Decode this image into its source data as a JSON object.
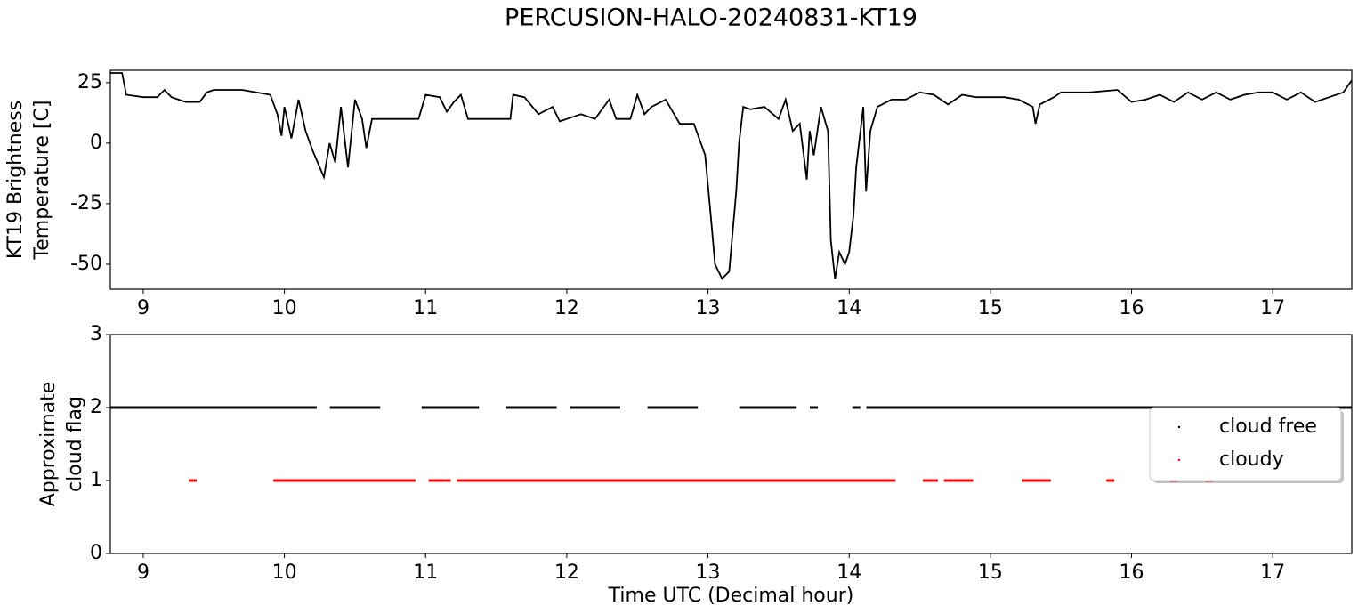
{
  "title": "PERCUSION-HALO-20240831-KT19",
  "chart_data": [
    {
      "type": "line",
      "y_label": [
        "KT19 Brightness",
        "Temperature [C]"
      ],
      "color": "#000000",
      "x": [
        8.77,
        8.85,
        8.88,
        9.0,
        9.1,
        9.15,
        9.2,
        9.3,
        9.4,
        9.45,
        9.5,
        9.7,
        9.9,
        9.95,
        9.98,
        10.0,
        10.05,
        10.1,
        10.15,
        10.2,
        10.25,
        10.28,
        10.32,
        10.36,
        10.4,
        10.45,
        10.5,
        10.55,
        10.58,
        10.62,
        10.7,
        10.8,
        10.95,
        11.0,
        11.1,
        11.15,
        11.2,
        11.25,
        11.3,
        11.5,
        11.6,
        11.62,
        11.7,
        11.8,
        11.9,
        11.95,
        12.0,
        12.1,
        12.2,
        12.3,
        12.35,
        12.45,
        12.5,
        12.55,
        12.6,
        12.7,
        12.8,
        12.9,
        12.95,
        12.98,
        13.02,
        13.05,
        13.1,
        13.15,
        13.17,
        13.2,
        13.22,
        13.25,
        13.3,
        13.4,
        13.5,
        13.55,
        13.6,
        13.65,
        13.7,
        13.72,
        13.75,
        13.8,
        13.85,
        13.87,
        13.9,
        13.93,
        13.97,
        14.0,
        14.03,
        14.05,
        14.1,
        14.12,
        14.15,
        14.2,
        14.3,
        14.4,
        14.5,
        14.6,
        14.7,
        14.8,
        14.9,
        15.0,
        15.1,
        15.2,
        15.3,
        15.32,
        15.35,
        15.45,
        15.5,
        15.7,
        15.9,
        16.0,
        16.1,
        16.2,
        16.3,
        16.4,
        16.5,
        16.6,
        16.7,
        16.8,
        16.9,
        17.0,
        17.1,
        17.2,
        17.3,
        17.4,
        17.5,
        17.56
      ],
      "values": [
        29,
        29,
        20,
        19,
        19,
        22,
        19,
        17,
        17,
        21,
        22,
        22,
        20,
        12,
        3,
        15,
        2,
        18,
        5,
        -3,
        -10,
        -14,
        0,
        -8,
        15,
        -10,
        18,
        10,
        -2,
        10,
        10,
        10,
        10,
        20,
        19,
        13,
        17,
        20,
        10,
        10,
        10,
        20,
        19,
        12,
        15,
        9,
        10,
        12,
        10,
        18,
        10,
        10,
        20,
        12,
        15,
        18,
        8,
        8,
        0,
        -5,
        -30,
        -50,
        -56,
        -53,
        -40,
        -20,
        0,
        15,
        14,
        15,
        10,
        18,
        5,
        8,
        -15,
        5,
        -5,
        15,
        5,
        -40,
        -56,
        -45,
        -50,
        -45,
        -30,
        -10,
        15,
        -20,
        5,
        15,
        18,
        18,
        21,
        20,
        16,
        20,
        19,
        19,
        19,
        18,
        15,
        8,
        16,
        19,
        21,
        21,
        22,
        17,
        18,
        20,
        17,
        21,
        18,
        21,
        18,
        20,
        21,
        21,
        18,
        21,
        17,
        19,
        21,
        26
      ],
      "xlim": [
        8.767,
        17.56
      ],
      "ylim": [
        -60.3,
        30.1
      ],
      "xticks": [
        9,
        10,
        11,
        12,
        13,
        14,
        15,
        16,
        17
      ],
      "yticks": [
        25,
        0,
        -25,
        -50
      ]
    },
    {
      "type": "scatter",
      "y_label": [
        "Approximate",
        "cloud flag"
      ],
      "x_label": "Time UTC (Decimal hour)",
      "legend": "right",
      "series": [
        {
          "name": "cloud free",
          "color": "#000000",
          "x": [
            8.77,
            8.8,
            8.85,
            8.9,
            8.95,
            9.0,
            9.05,
            9.1,
            9.15,
            9.2,
            9.25,
            9.3,
            9.35,
            9.4,
            9.45,
            9.5,
            9.55,
            9.6,
            9.65,
            9.7,
            9.75,
            9.8,
            9.85,
            9.9,
            9.95,
            10.0,
            10.05,
            10.1,
            10.15,
            10.2,
            10.35,
            10.4,
            10.45,
            10.5,
            10.55,
            10.6,
            10.65,
            11.0,
            11.05,
            11.1,
            11.15,
            11.2,
            11.25,
            11.3,
            11.35,
            11.6,
            11.65,
            11.7,
            11.75,
            11.8,
            11.85,
            11.9,
            12.05,
            12.1,
            12.15,
            12.2,
            12.25,
            12.3,
            12.35,
            12.6,
            12.65,
            12.7,
            12.75,
            12.8,
            12.85,
            12.9,
            13.25,
            13.3,
            13.35,
            13.4,
            13.45,
            13.5,
            13.55,
            13.6,
            13.75,
            14.05,
            14.15,
            14.2,
            14.25,
            14.3,
            14.35,
            14.4,
            14.45,
            14.5,
            14.55,
            14.6,
            14.65,
            14.7,
            14.75,
            14.8,
            14.85,
            14.9,
            14.95,
            15.0,
            15.05,
            15.1,
            15.15,
            15.2,
            15.25,
            15.3,
            15.35,
            15.4,
            15.45,
            15.5,
            15.55,
            15.6,
            15.65,
            15.7,
            15.75,
            15.8,
            15.85,
            15.9,
            15.95,
            16.0,
            16.05,
            16.1,
            16.15,
            16.2,
            16.25,
            16.3,
            16.35,
            16.4,
            16.45,
            16.5,
            16.55,
            16.6,
            16.65,
            16.7,
            16.75,
            16.8,
            16.85,
            16.9,
            16.95,
            17.0,
            17.05,
            17.1,
            17.15,
            17.2,
            17.25,
            17.3,
            17.35,
            17.4,
            17.45,
            17.5,
            17.55
          ],
          "values": [
            2,
            2,
            2,
            2,
            2,
            2,
            2,
            2,
            2,
            2,
            2,
            2,
            2,
            2,
            2,
            2,
            2,
            2,
            2,
            2,
            2,
            2,
            2,
            2,
            2,
            2,
            2,
            2,
            2,
            2,
            2,
            2,
            2,
            2,
            2,
            2,
            2,
            2,
            2,
            2,
            2,
            2,
            2,
            2,
            2,
            2,
            2,
            2,
            2,
            2,
            2,
            2,
            2,
            2,
            2,
            2,
            2,
            2,
            2,
            2,
            2,
            2,
            2,
            2,
            2,
            2,
            2,
            2,
            2,
            2,
            2,
            2,
            2,
            2,
            2,
            2,
            2,
            2,
            2,
            2,
            2,
            2,
            2,
            2,
            2,
            2,
            2,
            2,
            2,
            2,
            2,
            2,
            2,
            2,
            2,
            2,
            2,
            2,
            2,
            2,
            2,
            2,
            2,
            2,
            2,
            2,
            2,
            2,
            2,
            2,
            2,
            2,
            2,
            2,
            2,
            2,
            2,
            2,
            2,
            2,
            2,
            2,
            2,
            2,
            2,
            2,
            2,
            2,
            2,
            2,
            2,
            2,
            2,
            2,
            2,
            2,
            2,
            2,
            2,
            2,
            2,
            2,
            2,
            2,
            2
          ]
        },
        {
          "name": "cloudy",
          "color": "#ff0000",
          "x": [
            9.35,
            9.95,
            10.0,
            10.05,
            10.1,
            10.15,
            10.2,
            10.25,
            10.3,
            10.35,
            10.4,
            10.45,
            10.5,
            10.55,
            10.6,
            10.65,
            10.7,
            10.75,
            10.8,
            10.85,
            10.9,
            11.05,
            11.1,
            11.15,
            11.25,
            11.3,
            11.35,
            11.4,
            11.45,
            11.5,
            11.55,
            11.6,
            11.65,
            11.7,
            11.75,
            11.8,
            11.85,
            11.9,
            11.95,
            12.0,
            12.05,
            12.1,
            12.15,
            12.2,
            12.25,
            12.3,
            12.35,
            12.4,
            12.45,
            12.5,
            12.55,
            12.6,
            12.65,
            12.7,
            12.75,
            12.8,
            12.85,
            12.9,
            12.95,
            13.0,
            13.05,
            13.1,
            13.15,
            13.2,
            13.25,
            13.3,
            13.35,
            13.4,
            13.45,
            13.5,
            13.55,
            13.6,
            13.65,
            13.7,
            13.75,
            13.8,
            13.85,
            13.9,
            13.95,
            14.0,
            14.05,
            14.1,
            14.15,
            14.2,
            14.25,
            14.3,
            14.55,
            14.6,
            14.7,
            14.75,
            14.8,
            14.85,
            15.25,
            15.3,
            15.35,
            15.4,
            15.85,
            16.3,
            16.55
          ],
          "values": [
            1,
            1,
            1,
            1,
            1,
            1,
            1,
            1,
            1,
            1,
            1,
            1,
            1,
            1,
            1,
            1,
            1,
            1,
            1,
            1,
            1,
            1,
            1,
            1,
            1,
            1,
            1,
            1,
            1,
            1,
            1,
            1,
            1,
            1,
            1,
            1,
            1,
            1,
            1,
            1,
            1,
            1,
            1,
            1,
            1,
            1,
            1,
            1,
            1,
            1,
            1,
            1,
            1,
            1,
            1,
            1,
            1,
            1,
            1,
            1,
            1,
            1,
            1,
            1,
            1,
            1,
            1,
            1,
            1,
            1,
            1,
            1,
            1,
            1,
            1,
            1,
            1,
            1,
            1,
            1,
            1,
            1,
            1,
            1,
            1,
            1,
            1,
            1,
            1,
            1,
            1,
            1,
            1,
            1,
            1,
            1,
            1,
            1,
            1
          ]
        }
      ],
      "xlim": [
        8.767,
        17.56
      ],
      "ylim": [
        0,
        3
      ],
      "xticks": [
        9,
        10,
        11,
        12,
        13,
        14,
        15,
        16,
        17
      ],
      "yticks": [
        0,
        1,
        2,
        3
      ]
    }
  ]
}
